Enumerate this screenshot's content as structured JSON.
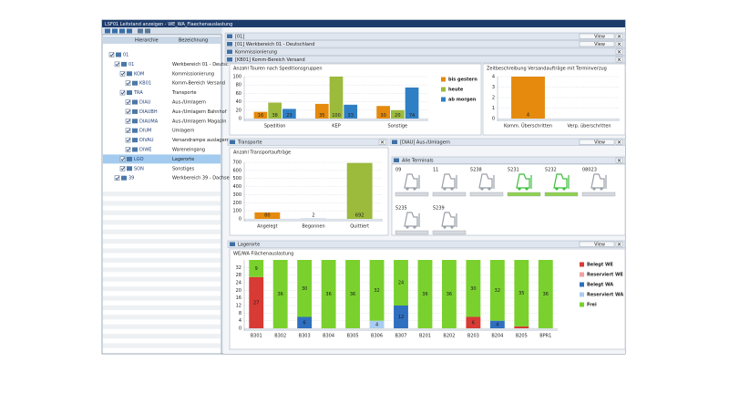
{
  "window": {
    "title": "LSF01 Leitstand anzeigen - WE_WA_Flaechenauslastung"
  },
  "tree": {
    "headers": [
      "Hierarchie",
      "Bezeichnung"
    ],
    "rows": [
      {
        "code": "01"
      },
      {
        "code": "01",
        "label": "Werkbereich 01 - Deutsc"
      },
      {
        "code": "KOM",
        "label": "Kommissionierung"
      },
      {
        "code": "KB01",
        "label": "Komm-Bereich Versand"
      },
      {
        "code": "TRA",
        "label": "Transporte"
      },
      {
        "code": "DIAU",
        "label": "Aus-/Umlagern"
      },
      {
        "code": "DIAUBH",
        "label": "Aus-/Umlagern Bahnhof"
      },
      {
        "code": "DIAUMA",
        "label": "Aus-/Umlagern Magazin"
      },
      {
        "code": "DIUM",
        "label": "Umlagern"
      },
      {
        "code": "DIVAU",
        "label": "Versandrampe auslagern"
      },
      {
        "code": "DIWE",
        "label": "Wareneingang"
      },
      {
        "code": "LGO",
        "label": "Lagerorte",
        "selected": true
      },
      {
        "code": "SON",
        "label": "Sonstiges"
      },
      {
        "code": "39",
        "label": "Werkbereich 39 - Dachse"
      }
    ]
  },
  "view_button": "View",
  "panels": [
    "[01]",
    "[01] Werkbereich 01 - Deutschland",
    "Kommissionierung",
    "[KB01] Komm-Bereich Versand",
    "Transporte",
    "[DIAU] Aus-/Umlagern",
    "Alle Terminals",
    "Lagerorte"
  ],
  "terminals": [
    {
      "label": "09"
    },
    {
      "label": "11"
    },
    {
      "label": "5238"
    },
    {
      "label": "5231",
      "active": true
    },
    {
      "label": "5232",
      "active": true
    },
    {
      "label": "08023"
    },
    {
      "label": "5235"
    },
    {
      "label": "5239"
    }
  ],
  "chart_data": [
    {
      "type": "bar",
      "title": "Anzahl Touren nach Speditionsgruppen",
      "categories": [
        "Spedition",
        "KEP",
        "Sonstige"
      ],
      "series": [
        {
          "name": "bis gestern",
          "color": "#e58a0c",
          "values": [
            16,
            35,
            30
          ]
        },
        {
          "name": "heute",
          "color": "#9cba3c",
          "values": [
            38,
            100,
            20
          ]
        },
        {
          "name": "ab morgen",
          "color": "#2f7fc4",
          "values": [
            23,
            33,
            74
          ]
        }
      ],
      "ylim": [
        0,
        100
      ],
      "yticks": [
        0,
        20,
        40,
        60,
        80,
        100
      ],
      "grid": true,
      "legend": "right"
    },
    {
      "type": "bar",
      "title": "Zeitbeschreibung Versandaufträge mit Terminverzug",
      "categories": [
        "Komm. Überschritten",
        "Verp. überschritten"
      ],
      "values": [
        4,
        0
      ],
      "color": "#e58a0c",
      "ylim": [
        0,
        4
      ],
      "yticks": [
        0,
        1,
        2,
        3,
        4
      ],
      "grid": true
    },
    {
      "type": "bar",
      "title": "Anzahl Transportaufträge",
      "categories": [
        "Angelegt",
        "Begonnen",
        "Quittiert"
      ],
      "values": [
        80,
        2,
        692
      ],
      "colors": [
        "#e58a0c",
        "#2f7fc4",
        "#9cba3c"
      ],
      "ylim": [
        0,
        700
      ],
      "yticks": [
        0,
        100,
        200,
        300,
        400,
        500,
        600,
        700
      ],
      "grid": true
    },
    {
      "type": "stacked_bar",
      "title": "WE/WA Flächenauslastung",
      "categories": [
        "B301",
        "B302",
        "B303",
        "B304",
        "B305",
        "B306",
        "B307",
        "B201",
        "B202",
        "B203",
        "B204",
        "B205",
        "BPR1"
      ],
      "series": [
        {
          "name": "Belegt WE",
          "color": "#d83a34",
          "values": [
            27,
            0,
            0,
            0,
            0,
            0,
            0,
            0,
            0,
            6,
            0,
            1,
            0
          ]
        },
        {
          "name": "Reserviert WE",
          "color": "#f2a0a0",
          "values": [
            0,
            0,
            0,
            0,
            0,
            0,
            0,
            0,
            0,
            0,
            0,
            0,
            0
          ]
        },
        {
          "name": "Belegt WA",
          "color": "#2f6fc0",
          "values": [
            0,
            0,
            6,
            0,
            0,
            0,
            12,
            0,
            0,
            0,
            4,
            0,
            0
          ]
        },
        {
          "name": "Reserviert WA",
          "color": "#a9ccf0",
          "values": [
            0,
            0,
            0,
            0,
            0,
            4,
            0,
            0,
            0,
            0,
            0,
            0,
            0
          ]
        },
        {
          "name": "Frei",
          "color": "#7ad12e",
          "values": [
            9,
            36,
            30,
            36,
            36,
            32,
            24,
            36,
            36,
            30,
            32,
            35,
            36
          ]
        }
      ],
      "ylim": [
        0,
        36
      ],
      "yticks": [
        0,
        4,
        8,
        12,
        16,
        20,
        24,
        28,
        32
      ],
      "grid": true,
      "legend": "right"
    }
  ]
}
